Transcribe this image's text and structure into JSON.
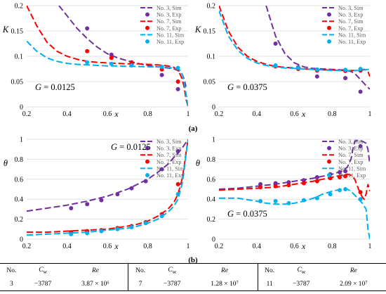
{
  "figure_labels": {
    "a": "(a)",
    "b": "(b)"
  },
  "chart_data": [
    {
      "type": "line",
      "panel": "a-left",
      "ylabel": "K",
      "xlabel": "x",
      "annotation": "G = 0.0125",
      "xlim": [
        0.2,
        1.0
      ],
      "ylim": [
        0,
        0.2
      ],
      "xticks": [
        "0.2",
        "0.4",
        "0.6",
        "0.8",
        "1"
      ],
      "yticks": [
        "0",
        "0.05",
        "0.1",
        "0.15",
        "0.2"
      ],
      "series": [
        {
          "name": "No. 3, Sim",
          "kind": "sim",
          "color": "#7030a0",
          "x": [
            0.36,
            0.4,
            0.45,
            0.5,
            0.55,
            0.6,
            0.65,
            0.7,
            0.75,
            0.8,
            0.85,
            0.9,
            0.93,
            0.95,
            0.97,
            0.98,
            0.99
          ],
          "y": [
            0.2,
            0.18,
            0.155,
            0.135,
            0.118,
            0.105,
            0.097,
            0.091,
            0.086,
            0.082,
            0.079,
            0.077,
            0.075,
            0.072,
            0.065,
            0.055,
            0.04
          ]
        },
        {
          "name": "No. 3, Exp",
          "kind": "exp",
          "color": "#7030a0",
          "x": [
            0.5,
            0.62,
            0.72,
            0.87,
            0.95
          ],
          "y": [
            0.155,
            0.103,
            0.085,
            0.063,
            0.035
          ]
        },
        {
          "name": "No. 7, Sim",
          "kind": "sim",
          "color": "#ff0000",
          "x": [
            0.2,
            0.25,
            0.3,
            0.35,
            0.4,
            0.45,
            0.5,
            0.55,
            0.6,
            0.65,
            0.7,
            0.75,
            0.8,
            0.85,
            0.9,
            0.93,
            0.95,
            0.96,
            0.97,
            0.98,
            0.99,
            1.0
          ],
          "y": [
            0.2,
            0.16,
            0.128,
            0.11,
            0.1,
            0.094,
            0.09,
            0.088,
            0.087,
            0.086,
            0.085,
            0.085,
            0.084,
            0.083,
            0.081,
            0.078,
            0.072,
            0.065,
            0.055,
            0.04,
            0.015,
            0.0
          ]
        },
        {
          "name": "No. 7, Exp",
          "kind": "exp",
          "color": "#ff0000",
          "x": [
            0.5,
            0.62,
            0.72,
            0.87,
            0.95
          ],
          "y": [
            0.11,
            0.097,
            0.088,
            0.074,
            0.05
          ]
        },
        {
          "name": "No. 11, Sim",
          "kind": "sim",
          "color": "#00b0f0",
          "x": [
            0.2,
            0.25,
            0.3,
            0.35,
            0.4,
            0.45,
            0.5,
            0.55,
            0.6,
            0.65,
            0.7,
            0.75,
            0.8,
            0.85,
            0.9,
            0.93,
            0.95,
            0.96,
            0.97,
            0.98,
            0.99,
            1.0
          ],
          "y": [
            0.13,
            0.11,
            0.097,
            0.09,
            0.086,
            0.084,
            0.083,
            0.082,
            0.081,
            0.081,
            0.08,
            0.08,
            0.079,
            0.079,
            0.078,
            0.077,
            0.075,
            0.072,
            0.065,
            0.05,
            0.025,
            0.0
          ]
        },
        {
          "name": "No. 11, Exp",
          "kind": "exp",
          "color": "#00b0f0",
          "x": [
            0.5,
            0.62,
            0.72,
            0.87,
            0.95
          ],
          "y": [
            0.088,
            0.085,
            0.082,
            0.079,
            0.077
          ]
        }
      ]
    },
    {
      "type": "line",
      "panel": "a-right",
      "ylabel": "K",
      "xlabel": "x",
      "annotation": "G = 0.0375",
      "xlim": [
        0.2,
        1.0
      ],
      "ylim": [
        0,
        0.2
      ],
      "xticks": [
        "0.2",
        "0.4",
        "0.6",
        "0.8",
        "1"
      ],
      "yticks": [
        "0",
        "0.05",
        "0.1",
        "0.15",
        "0.2"
      ],
      "series": [
        {
          "name": "No. 3, Sim",
          "kind": "sim",
          "color": "#7030a0",
          "x": [
            0.45,
            0.5,
            0.55,
            0.6,
            0.65,
            0.7,
            0.75,
            0.8,
            0.85,
            0.88,
            0.9,
            0.92,
            0.94,
            0.96,
            0.98,
            1.0
          ],
          "y": [
            0.2,
            0.14,
            0.105,
            0.087,
            0.079,
            0.076,
            0.075,
            0.074,
            0.073,
            0.072,
            0.07,
            0.066,
            0.058,
            0.05,
            0.042,
            0.035
          ]
        },
        {
          "name": "No. 3, Exp",
          "kind": "exp",
          "color": "#7030a0",
          "x": [
            0.5,
            0.62,
            0.72,
            0.87,
            0.95
          ],
          "y": [
            0.125,
            0.078,
            0.06,
            0.057,
            0.03
          ]
        },
        {
          "name": "No. 7, Sim",
          "kind": "sim",
          "color": "#ff0000",
          "x": [
            0.2,
            0.25,
            0.3,
            0.35,
            0.4,
            0.45,
            0.5,
            0.55,
            0.6,
            0.65,
            0.7,
            0.75,
            0.8,
            0.85,
            0.9,
            0.93,
            0.95,
            0.97,
            0.99,
            1.0
          ],
          "y": [
            0.2,
            0.15,
            0.118,
            0.1,
            0.09,
            0.084,
            0.08,
            0.078,
            0.077,
            0.075,
            0.074,
            0.073,
            0.073,
            0.072,
            0.072,
            0.072,
            0.073,
            0.074,
            0.07,
            0.06
          ]
        },
        {
          "name": "No. 7, Exp",
          "kind": "exp",
          "color": "#ff0000",
          "x": [
            0.5,
            0.62,
            0.72,
            0.87,
            0.95
          ],
          "y": [
            0.08,
            0.075,
            0.072,
            0.071,
            0.072
          ]
        },
        {
          "name": "No. 11, Sim",
          "kind": "sim",
          "color": "#00b0f0",
          "x": [
            0.2,
            0.25,
            0.3,
            0.35,
            0.4,
            0.45,
            0.5,
            0.55,
            0.6,
            0.65,
            0.7,
            0.75,
            0.8,
            0.85,
            0.9,
            0.93,
            0.95,
            0.97,
            0.99,
            1.0
          ],
          "y": [
            0.19,
            0.14,
            0.112,
            0.096,
            0.087,
            0.082,
            0.079,
            0.077,
            0.076,
            0.075,
            0.074,
            0.073,
            0.072,
            0.072,
            0.072,
            0.072,
            0.072,
            0.073,
            0.074,
            0.075
          ]
        },
        {
          "name": "No. 11, Exp",
          "kind": "exp",
          "color": "#00b0f0",
          "x": [
            0.5,
            0.62,
            0.72,
            0.87,
            0.95
          ],
          "y": [
            0.082,
            0.077,
            0.074,
            0.073,
            0.075
          ]
        }
      ]
    },
    {
      "type": "line",
      "panel": "b-left",
      "ylabel": "θ",
      "xlabel": "x",
      "annotation": "G = 0.0125",
      "xlim": [
        0.2,
        1.0
      ],
      "ylim": [
        0,
        1.0
      ],
      "xticks": [
        "0.2",
        "0.4",
        "0.6",
        "0.8",
        "1"
      ],
      "yticks": [
        "0",
        "0.2",
        "0.4",
        "0.6",
        "0.8",
        "1"
      ],
      "series": [
        {
          "name": "No. 3, Sim",
          "kind": "sim",
          "color": "#7030a0",
          "x": [
            0.2,
            0.3,
            0.4,
            0.5,
            0.6,
            0.7,
            0.8,
            0.85,
            0.9,
            0.93,
            0.95,
            0.97,
            0.98,
            0.99,
            1.0
          ],
          "y": [
            0.28,
            0.31,
            0.34,
            0.38,
            0.43,
            0.5,
            0.6,
            0.67,
            0.75,
            0.82,
            0.86,
            0.91,
            0.94,
            0.97,
            1.0
          ]
        },
        {
          "name": "No. 3, Exp",
          "kind": "exp",
          "color": "#7030a0",
          "x": [
            0.42,
            0.5,
            0.57,
            0.65,
            0.72,
            0.79,
            0.87,
            0.95
          ],
          "y": [
            0.31,
            0.35,
            0.39,
            0.45,
            0.51,
            0.58,
            0.7,
            0.88
          ]
        },
        {
          "name": "No. 7, Sim",
          "kind": "sim",
          "color": "#ff0000",
          "x": [
            0.2,
            0.3,
            0.4,
            0.5,
            0.6,
            0.7,
            0.75,
            0.8,
            0.85,
            0.9,
            0.93,
            0.95,
            0.97,
            0.98,
            0.99,
            1.0
          ],
          "y": [
            0.07,
            0.07,
            0.08,
            0.09,
            0.1,
            0.13,
            0.15,
            0.18,
            0.23,
            0.3,
            0.37,
            0.45,
            0.6,
            0.72,
            0.87,
            1.0
          ]
        },
        {
          "name": "No. 7, Exp",
          "kind": "exp",
          "color": "#ff0000",
          "x": [
            0.42,
            0.5,
            0.57,
            0.65,
            0.72,
            0.79,
            0.87,
            0.95
          ],
          "y": [
            0.07,
            0.08,
            0.09,
            0.11,
            0.13,
            0.17,
            0.25,
            0.55
          ]
        },
        {
          "name": "No. 11, Sim",
          "kind": "sim",
          "color": "#00b0f0",
          "x": [
            0.2,
            0.3,
            0.4,
            0.5,
            0.6,
            0.7,
            0.75,
            0.8,
            0.85,
            0.9,
            0.93,
            0.95,
            0.97,
            0.98,
            0.99,
            1.0
          ],
          "y": [
            0.04,
            0.05,
            0.06,
            0.07,
            0.09,
            0.11,
            0.13,
            0.16,
            0.2,
            0.27,
            0.33,
            0.4,
            0.55,
            0.68,
            0.85,
            1.0
          ]
        },
        {
          "name": "No. 11, Exp",
          "kind": "exp",
          "color": "#00b0f0",
          "x": [
            0.42,
            0.5,
            0.57,
            0.65,
            0.72,
            0.79,
            0.87,
            0.95
          ],
          "y": [
            0.05,
            0.06,
            0.08,
            0.1,
            0.12,
            0.16,
            0.23,
            0.45
          ]
        }
      ]
    },
    {
      "type": "line",
      "panel": "b-right",
      "ylabel": "θ",
      "xlabel": "x",
      "annotation": "G = 0.0375",
      "xlim": [
        0.2,
        1.0
      ],
      "ylim": [
        0,
        1.0
      ],
      "xticks": [
        "0.2",
        "0.4",
        "0.6",
        "0.8",
        "1"
      ],
      "yticks": [
        "0",
        "0.2",
        "0.4",
        "0.6",
        "0.8",
        "1"
      ],
      "series": [
        {
          "name": "No. 3, Sim",
          "kind": "sim",
          "color": "#7030a0",
          "x": [
            0.2,
            0.3,
            0.4,
            0.5,
            0.6,
            0.7,
            0.8,
            0.85,
            0.88,
            0.9,
            0.91,
            0.92,
            0.94,
            0.96,
            0.98,
            0.99,
            1.0
          ],
          "y": [
            0.5,
            0.51,
            0.53,
            0.55,
            0.58,
            0.61,
            0.65,
            0.68,
            0.72,
            0.8,
            0.9,
            0.98,
            0.99,
            0.98,
            0.96,
            0.9,
            0.75
          ]
        },
        {
          "name": "No. 3, Exp",
          "kind": "exp",
          "color": "#7030a0",
          "x": [
            0.42,
            0.5,
            0.57,
            0.65,
            0.72,
            0.79,
            0.84,
            0.87,
            0.95
          ],
          "y": [
            0.55,
            0.56,
            0.57,
            0.59,
            0.62,
            0.65,
            0.67,
            0.68,
            0.93
          ]
        },
        {
          "name": "No. 7, Sim",
          "kind": "sim",
          "color": "#ff0000",
          "x": [
            0.2,
            0.3,
            0.4,
            0.5,
            0.6,
            0.7,
            0.8,
            0.85,
            0.88,
            0.9,
            0.92,
            0.94,
            0.96,
            0.97,
            0.98,
            0.99,
            1.0
          ],
          "y": [
            0.49,
            0.5,
            0.51,
            0.52,
            0.55,
            0.58,
            0.62,
            0.64,
            0.65,
            0.64,
            0.6,
            0.5,
            0.42,
            0.4,
            0.45,
            0.55,
            0.48
          ]
        },
        {
          "name": "No. 7, Exp",
          "kind": "exp",
          "color": "#ff0000",
          "x": [
            0.42,
            0.5,
            0.57,
            0.65,
            0.72,
            0.79,
            0.84,
            0.87,
            0.95
          ],
          "y": [
            0.52,
            0.53,
            0.54,
            0.56,
            0.58,
            0.61,
            0.62,
            0.63,
            0.47
          ]
        },
        {
          "name": "No. 11, Sim",
          "kind": "sim",
          "color": "#00b0f0",
          "x": [
            0.2,
            0.3,
            0.4,
            0.45,
            0.5,
            0.55,
            0.6,
            0.65,
            0.7,
            0.75,
            0.8,
            0.85,
            0.88,
            0.9,
            0.92,
            0.94,
            0.96,
            0.98,
            0.99,
            1.0
          ],
          "y": [
            0.41,
            0.41,
            0.38,
            0.36,
            0.35,
            0.35,
            0.36,
            0.38,
            0.41,
            0.45,
            0.48,
            0.5,
            0.5,
            0.48,
            0.44,
            0.4,
            0.36,
            0.3,
            0.1,
            0.0
          ]
        },
        {
          "name": "No. 11, Exp",
          "kind": "exp",
          "color": "#00b0f0",
          "x": [
            0.42,
            0.5,
            0.57,
            0.65,
            0.72,
            0.79,
            0.84,
            0.87,
            0.95
          ],
          "y": [
            0.38,
            0.38,
            0.36,
            0.39,
            0.41,
            0.45,
            0.49,
            0.5,
            0.4
          ]
        }
      ]
    }
  ],
  "table": {
    "headers": [
      "No.",
      "C_w",
      "Re",
      "No.",
      "C_w",
      "Re",
      "No.",
      "C_w",
      "Re"
    ],
    "rows": [
      [
        "3",
        "−3787",
        "3.87 × 10⁶",
        "7",
        "−3787",
        "1.28 × 10⁷",
        "11",
        "−3787",
        "2.09 × 10⁷"
      ]
    ]
  }
}
